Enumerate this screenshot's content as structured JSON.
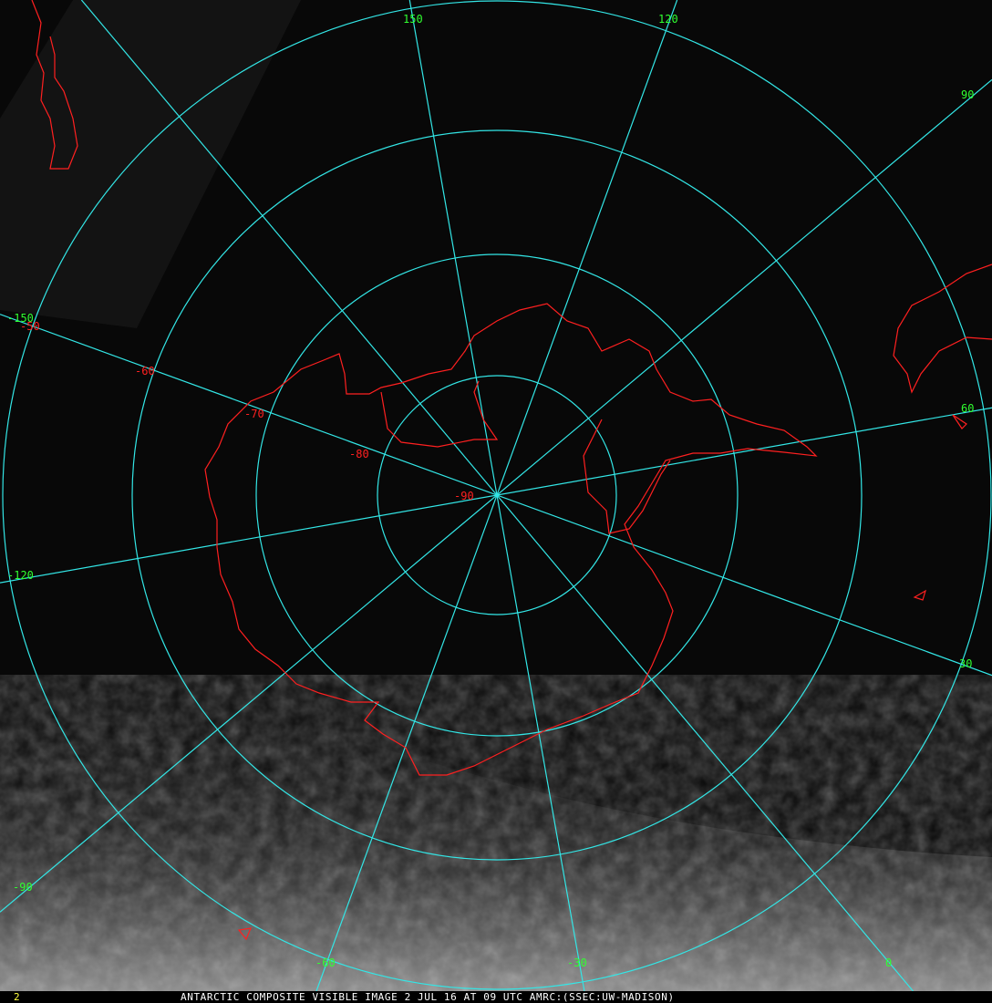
{
  "caption": "ANTARCTIC COMPOSITE VISIBLE IMAGE 2 JUL 16 AT 09 UTC AMRC:(SSEC:UW-MADISON)",
  "frame_number": "2",
  "colors": {
    "grid": "#33e6e6",
    "coastline": "#ff2020",
    "longitude_labels": "#30ff30",
    "latitude_labels": "#ff2020",
    "frame_number": "#ffff40",
    "caption": "#ffffff"
  },
  "longitude_labels": [
    "150",
    "120",
    "90",
    "60",
    "30",
    "0",
    "-30",
    "-60",
    "-90",
    "-120",
    "-150"
  ],
  "latitude_labels": [
    "-50",
    "-60",
    "-70",
    "-80",
    "-90"
  ]
}
